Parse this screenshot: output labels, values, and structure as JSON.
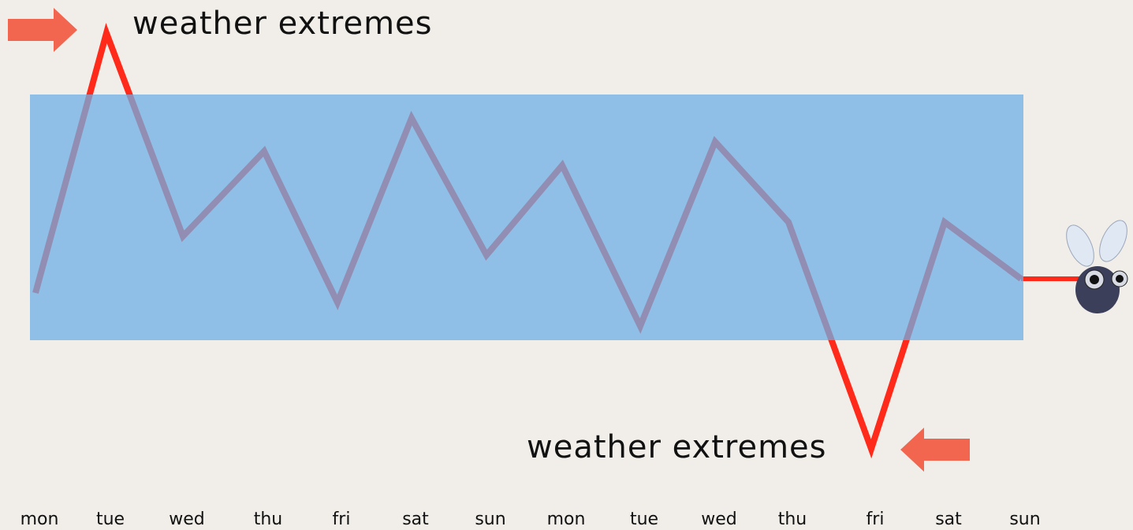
{
  "chart_data": {
    "type": "line",
    "categories": [
      "mon",
      "tue",
      "wed",
      "thu",
      "fri",
      "sat",
      "sun",
      "mon",
      "tue",
      "wed",
      "thu",
      "fri",
      "sat",
      "sun"
    ],
    "values": [
      38,
      93,
      50,
      68,
      36,
      75,
      46,
      65,
      31,
      70,
      53,
      5,
      53,
      41
    ],
    "color": "#ff2a1a",
    "normal_range": [
      28,
      80
    ],
    "band_color": "rgba(110,175,230,0.75)",
    "ylim": [
      0,
      100
    ],
    "annotations": [
      "weather extremes",
      "weather extremes"
    ]
  }
}
